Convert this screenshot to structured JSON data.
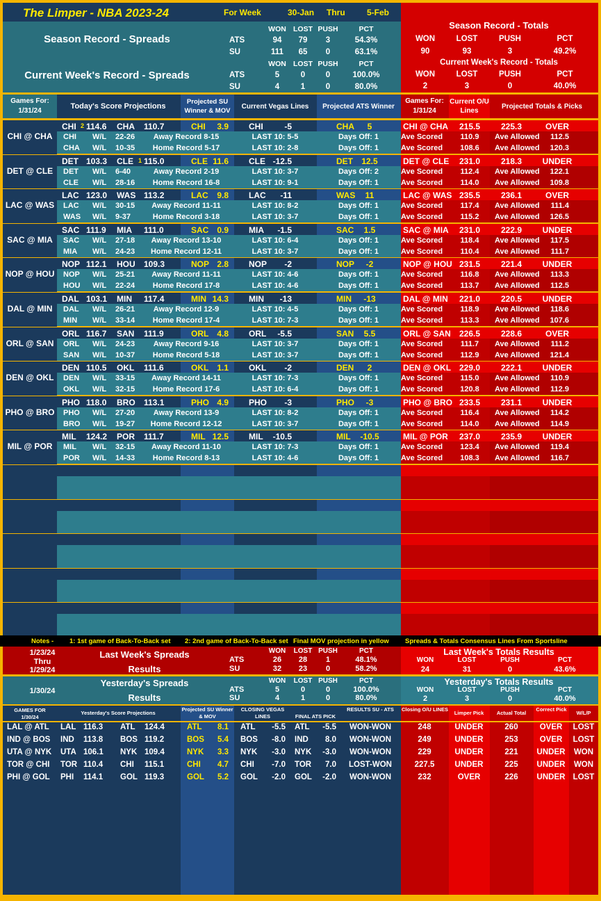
{
  "title": {
    "name": "The Limper - NBA 2023-24",
    "for_week": "For Week",
    "from": "30-Jan",
    "thru": "Thru",
    "to": "5-Feb"
  },
  "season_spreads": {
    "title": "Season Record - Spreads",
    "h": [
      "WON",
      "LOST",
      "PUSH",
      "PCT"
    ],
    "ats": [
      "ATS",
      "94",
      "79",
      "3",
      "54.3%"
    ],
    "su": [
      "SU",
      "111",
      "65",
      "0",
      "63.1%"
    ]
  },
  "season_totals": {
    "title": "Season Record - Totals",
    "h": [
      "WON",
      "LOST",
      "PUSH",
      "PCT"
    ],
    "row": [
      "90",
      "93",
      "3",
      "49.2%"
    ]
  },
  "week_spreads": {
    "title": "Current Week's Record - Spreads",
    "h": [
      "WON",
      "LOST",
      "PUSH",
      "PCT"
    ],
    "ats": [
      "ATS",
      "5",
      "0",
      "0",
      "100.0%"
    ],
    "su": [
      "SU",
      "4",
      "1",
      "0",
      "80.0%"
    ]
  },
  "week_totals": {
    "title": "Current Week's Record - Totals",
    "h": [
      "WON",
      "LOST",
      "PUSH",
      "PCT"
    ],
    "row": [
      "2",
      "3",
      "0",
      "40.0%"
    ]
  },
  "games_header": {
    "games_for": "Games For:",
    "date": "1/31/24",
    "proj": "Today's Score Projections",
    "su": "Projected SU Winner & MOV",
    "vegas": "Current Vegas Lines",
    "ats": "Projected ATS Winner",
    "games_for2": "Games For:",
    "date2": "1/31/24",
    "current": "Current O/U Lines",
    "totals": "Projected Totals & Picks"
  },
  "games": [
    {
      "label": "CHI @ CHA",
      "a": "CHI",
      "b2b_a": "2",
      "as": "114.6",
      "b": "CHA",
      "b2b_b": "",
      "bs": "110.7",
      "su": "CHI",
      "mov": "3.9",
      "vt": "CHI",
      "vl": "-5",
      "atst": "CHA",
      "atsv": "5",
      "ou_label": "CHI @ CHA",
      "ou": "215.5",
      "proj_total": "225.3",
      "pick": "OVER",
      "r1": {
        "team": "CHI",
        "wl": "W/L",
        "rec": "22-26",
        "split": "Away Record 8-15",
        "last10": "LAST 10: 5-5",
        "days": "Days Off: 1",
        "scored": "110.9",
        "allowed": "112.5"
      },
      "r2": {
        "team": "CHA",
        "wl": "W/L",
        "rec": "10-35",
        "split": "Home Record 5-17",
        "last10": "LAST 10: 2-8",
        "days": "Days Off: 1",
        "scored": "108.6",
        "allowed": "120.3"
      }
    },
    {
      "label": "DET @ CLE",
      "a": "DET",
      "b2b_a": "",
      "as": "103.3",
      "b": "CLE",
      "b2b_b": "1",
      "bs": "115.0",
      "su": "CLE",
      "mov": "11.6",
      "vt": "CLE",
      "vl": "-12.5",
      "atst": "DET",
      "atsv": "12.5",
      "ou_label": "DET @ CLE",
      "ou": "231.0",
      "proj_total": "218.3",
      "pick": "UNDER",
      "r1": {
        "team": "DET",
        "wl": "W/L",
        "rec": "6-40",
        "split": "Away Record 2-19",
        "last10": "LAST 10: 3-7",
        "days": "Days Off: 2",
        "scored": "112.4",
        "allowed": "122.1"
      },
      "r2": {
        "team": "CLE",
        "wl": "W/L",
        "rec": "28-16",
        "split": "Home Record 16-8",
        "last10": "LAST 10: 9-1",
        "days": "Days Off: 1",
        "scored": "114.0",
        "allowed": "109.8"
      }
    },
    {
      "label": "LAC @ WAS",
      "a": "LAC",
      "b2b_a": "",
      "as": "123.0",
      "b": "WAS",
      "b2b_b": "",
      "bs": "113.2",
      "su": "LAC",
      "mov": "9.8",
      "vt": "LAC",
      "vl": "-11",
      "atst": "WAS",
      "atsv": "11",
      "ou_label": "LAC @ WAS",
      "ou": "235.5",
      "proj_total": "236.1",
      "pick": "OVER",
      "r1": {
        "team": "LAC",
        "wl": "W/L",
        "rec": "30-15",
        "split": "Away Record 11-11",
        "last10": "LAST 10: 8-2",
        "days": "Days Off: 1",
        "scored": "117.4",
        "allowed": "111.4"
      },
      "r2": {
        "team": "WAS",
        "wl": "W/L",
        "rec": "9-37",
        "split": "Home Record 3-18",
        "last10": "LAST 10: 3-7",
        "days": "Days Off: 1",
        "scored": "115.2",
        "allowed": "126.5"
      }
    },
    {
      "label": "SAC @ MIA",
      "a": "SAC",
      "b2b_a": "",
      "as": "111.9",
      "b": "MIA",
      "b2b_b": "",
      "bs": "111.0",
      "su": "SAC",
      "mov": "0.9",
      "vt": "MIA",
      "vl": "-1.5",
      "atst": "SAC",
      "atsv": "1.5",
      "ou_label": "SAC @ MIA",
      "ou": "231.0",
      "proj_total": "222.9",
      "pick": "UNDER",
      "r1": {
        "team": "SAC",
        "wl": "W/L",
        "rec": "27-18",
        "split": "Away Record 13-10",
        "last10": "LAST 10: 6-4",
        "days": "Days Off: 1",
        "scored": "118.4",
        "allowed": "117.5"
      },
      "r2": {
        "team": "MIA",
        "wl": "W/L",
        "rec": "24-23",
        "split": "Home Record 12-11",
        "last10": "LAST 10: 3-7",
        "days": "Days Off: 1",
        "scored": "110.4",
        "allowed": "111.7"
      }
    },
    {
      "label": "NOP @ HOU",
      "a": "NOP",
      "b2b_a": "",
      "as": "112.1",
      "b": "HOU",
      "b2b_b": "",
      "bs": "109.3",
      "su": "NOP",
      "mov": "2.8",
      "vt": "NOP",
      "vl": "-2",
      "atst": "NOP",
      "atsv": "-2",
      "ou_label": "NOP @ HOU",
      "ou": "231.5",
      "proj_total": "221.4",
      "pick": "UNDER",
      "r1": {
        "team": "NOP",
        "wl": "W/L",
        "rec": "25-21",
        "split": "Away Record 11-11",
        "last10": "LAST 10: 4-6",
        "days": "Days Off: 1",
        "scored": "116.8",
        "allowed": "113.3"
      },
      "r2": {
        "team": "HOU",
        "wl": "W/L",
        "rec": "22-24",
        "split": "Home Record 17-8",
        "last10": "LAST 10: 4-6",
        "days": "Days Off: 1",
        "scored": "113.7",
        "allowed": "112.5"
      }
    },
    {
      "label": "DAL @ MIN",
      "a": "DAL",
      "b2b_a": "",
      "as": "103.1",
      "b": "MIN",
      "b2b_b": "",
      "bs": "117.4",
      "su": "MIN",
      "mov": "14.3",
      "vt": "MIN",
      "vl": "-13",
      "atst": "MIN",
      "atsv": "-13",
      "ou_label": "DAL @ MIN",
      "ou": "221.0",
      "proj_total": "220.5",
      "pick": "UNDER",
      "r1": {
        "team": "DAL",
        "wl": "W/L",
        "rec": "26-21",
        "split": "Away Record 12-9",
        "last10": "LAST 10: 4-5",
        "days": "Days Off: 1",
        "scored": "118.9",
        "allowed": "118.6"
      },
      "r2": {
        "team": "MIN",
        "wl": "W/L",
        "rec": "33-14",
        "split": "Home Record 17-4",
        "last10": "LAST 10: 7-3",
        "days": "Days Off: 1",
        "scored": "113.3",
        "allowed": "107.6"
      }
    },
    {
      "label": "ORL @ SAN",
      "a": "ORL",
      "b2b_a": "",
      "as": "116.7",
      "b": "SAN",
      "b2b_b": "",
      "bs": "111.9",
      "su": "ORL",
      "mov": "4.8",
      "vt": "ORL",
      "vl": "-5.5",
      "atst": "SAN",
      "atsv": "5.5",
      "ou_label": "ORL @ SAN",
      "ou": "226.5",
      "proj_total": "228.6",
      "pick": "OVER",
      "r1": {
        "team": "ORL",
        "wl": "W/L",
        "rec": "24-23",
        "split": "Away Record 9-16",
        "last10": "LAST 10: 3-7",
        "days": "Days Off: 1",
        "scored": "111.7",
        "allowed": "111.2"
      },
      "r2": {
        "team": "SAN",
        "wl": "W/L",
        "rec": "10-37",
        "split": "Home Record 5-18",
        "last10": "LAST 10: 3-7",
        "days": "Days Off: 1",
        "scored": "112.9",
        "allowed": "121.4"
      }
    },
    {
      "label": "DEN @ OKL",
      "a": "DEN",
      "b2b_a": "",
      "as": "110.5",
      "b": "OKL",
      "b2b_b": "",
      "bs": "111.6",
      "su": "OKL",
      "mov": "1.1",
      "vt": "OKL",
      "vl": "-2",
      "atst": "DEN",
      "atsv": "2",
      "ou_label": "DEN @ OKL",
      "ou": "229.0",
      "proj_total": "222.1",
      "pick": "UNDER",
      "r1": {
        "team": "DEN",
        "wl": "W/L",
        "rec": "33-15",
        "split": "Away Record 14-11",
        "last10": "LAST 10: 7-3",
        "days": "Days Off: 1",
        "scored": "115.0",
        "allowed": "110.9"
      },
      "r2": {
        "team": "OKL",
        "wl": "W/L",
        "rec": "32-15",
        "split": "Home Record 17-6",
        "last10": "LAST 10: 6-4",
        "days": "Days Off: 1",
        "scored": "120.8",
        "allowed": "112.9"
      }
    },
    {
      "label": "PHO @ BRO",
      "a": "PHO",
      "b2b_a": "",
      "as": "118.0",
      "b": "BRO",
      "b2b_b": "",
      "bs": "113.1",
      "su": "PHO",
      "mov": "4.9",
      "vt": "PHO",
      "vl": "-3",
      "atst": "PHO",
      "atsv": "-3",
      "ou_label": "PHO @ BRO",
      "ou": "233.5",
      "proj_total": "231.1",
      "pick": "UNDER",
      "r1": {
        "team": "PHO",
        "wl": "W/L",
        "rec": "27-20",
        "split": "Away Record 13-9",
        "last10": "LAST 10: 8-2",
        "days": "Days Off: 1",
        "scored": "116.4",
        "allowed": "114.2"
      },
      "r2": {
        "team": "BRO",
        "wl": "W/L",
        "rec": "19-27",
        "split": "Home Record 12-12",
        "last10": "LAST 10: 3-7",
        "days": "Days Off: 1",
        "scored": "114.0",
        "allowed": "114.9"
      }
    },
    {
      "label": "MIL @ POR",
      "a": "MIL",
      "b2b_a": "",
      "as": "124.2",
      "b": "POR",
      "b2b_b": "",
      "bs": "111.7",
      "su": "MIL",
      "mov": "12.5",
      "vt": "MIL",
      "vl": "-10.5",
      "atst": "MIL",
      "atsv": "-10.5",
      "ou_label": "MIL @ POR",
      "ou": "237.0",
      "proj_total": "235.9",
      "pick": "UNDER",
      "r1": {
        "team": "MIL",
        "wl": "W/L",
        "rec": "32-15",
        "split": "Away Record 11-10",
        "last10": "LAST 10: 7-3",
        "days": "Days Off: 1",
        "scored": "123.4",
        "allowed": "119.4"
      },
      "r2": {
        "team": "POR",
        "wl": "W/L",
        "rec": "14-33",
        "split": "Home Record 8-13",
        "last10": "LAST 10: 4-6",
        "days": "Days Off: 1",
        "scored": "108.3",
        "allowed": "116.7"
      }
    }
  ],
  "row_labels": {
    "ave_scored": "Ave Scored",
    "ave_allowed": "Ave Allowed"
  },
  "notes": {
    "label": "Notes -",
    "n1": "1: 1st game of Back-To-Back set",
    "n2": "2: 2nd game of Back-To-Back set",
    "n3": "Final MOV projection in yellow",
    "n4": "Spreads & Totals Consensus Lines From Sportsline"
  },
  "last_week": {
    "d1": "1/23/24",
    "d2": "Thru",
    "d3": "1/29/24",
    "title1": "Last Week's Spreads",
    "title2": "Results",
    "h": [
      "WON",
      "LOST",
      "PUSH",
      "PCT"
    ],
    "ats": [
      "ATS",
      "26",
      "28",
      "1",
      "48.1%"
    ],
    "su": [
      "SU",
      "32",
      "23",
      "0",
      "58.2%"
    ],
    "t_title": "Last Week's Totals Results",
    "t_h": [
      "WON",
      "LOST",
      "PUSH",
      "PCT"
    ],
    "t_row": [
      "24",
      "31",
      "0",
      "43.6%"
    ]
  },
  "yesterday": {
    "date": "1/30/24",
    "title1": "Yesterday's Spreads",
    "title2": "Results",
    "h": [
      "WON",
      "LOST",
      "PUSH",
      "PCT"
    ],
    "ats": [
      "ATS",
      "5",
      "0",
      "0",
      "100.0%"
    ],
    "su": [
      "SU",
      "4",
      "1",
      "0",
      "80.0%"
    ],
    "t_title": "Yesterday's Totals Results",
    "t_h": [
      "WON",
      "LOST",
      "PUSH",
      "PCT"
    ],
    "t_row": [
      "2",
      "3",
      "0",
      "40.0%"
    ]
  },
  "yest_header": {
    "games_for": "GAMES FOR",
    "date": "1/30/24",
    "proj": "Yesterday's Score Projections",
    "su": "Projected SU Winner & MOV",
    "closing": "CLOSING VEGAS LINES",
    "final_ats": "FINAL ATS PICK",
    "results": "RESULTS SU - ATS",
    "closing_ou": "Closing O/U LINES",
    "pick": "Limper Pick",
    "actual": "Actual Total",
    "correct": "Correct Pick",
    "wlp": "W/L/P"
  },
  "yest_games": [
    {
      "label": "LAL @ ATL",
      "a": "LAL",
      "as": "116.3",
      "b": "ATL",
      "bs": "124.4",
      "su": "ATL",
      "mov": "8.1",
      "ct": "ATL",
      "cl": "-5.5",
      "at": "ATL",
      "al": "-5.5",
      "res": "WON-WON",
      "ou": "248",
      "pick": "UNDER",
      "actual": "260",
      "correct": "OVER",
      "wlp": "LOST"
    },
    {
      "label": "IND @ BOS",
      "a": "IND",
      "as": "113.8",
      "b": "BOS",
      "bs": "119.2",
      "su": "BOS",
      "mov": "5.4",
      "ct": "BOS",
      "cl": "-8.0",
      "at": "IND",
      "al": "8.0",
      "res": "WON-WON",
      "ou": "249",
      "pick": "UNDER",
      "actual": "253",
      "correct": "OVER",
      "wlp": "LOST"
    },
    {
      "label": "UTA @ NYK",
      "a": "UTA",
      "as": "106.1",
      "b": "NYK",
      "bs": "109.4",
      "su": "NYK",
      "mov": "3.3",
      "ct": "NYK",
      "cl": "-3.0",
      "at": "NYK",
      "al": "-3.0",
      "res": "WON-WON",
      "ou": "229",
      "pick": "UNDER",
      "actual": "221",
      "correct": "UNDER",
      "wlp": "WON"
    },
    {
      "label": "TOR @ CHI",
      "a": "TOR",
      "as": "110.4",
      "b": "CHI",
      "bs": "115.1",
      "su": "CHI",
      "mov": "4.7",
      "ct": "CHI",
      "cl": "-7.0",
      "at": "TOR",
      "al": "7.0",
      "res": "LOST-WON",
      "ou": "227.5",
      "pick": "UNDER",
      "actual": "225",
      "correct": "UNDER",
      "wlp": "WON"
    },
    {
      "label": "PHI @ GOL",
      "a": "PHI",
      "as": "114.1",
      "b": "GOL",
      "bs": "119.3",
      "su": "GOL",
      "mov": "5.2",
      "ct": "GOL",
      "cl": "-2.0",
      "at": "GOL",
      "al": "-2.0",
      "res": "WON-WON",
      "ou": "232",
      "pick": "OVER",
      "actual": "226",
      "correct": "UNDER",
      "wlp": "LOST"
    }
  ]
}
